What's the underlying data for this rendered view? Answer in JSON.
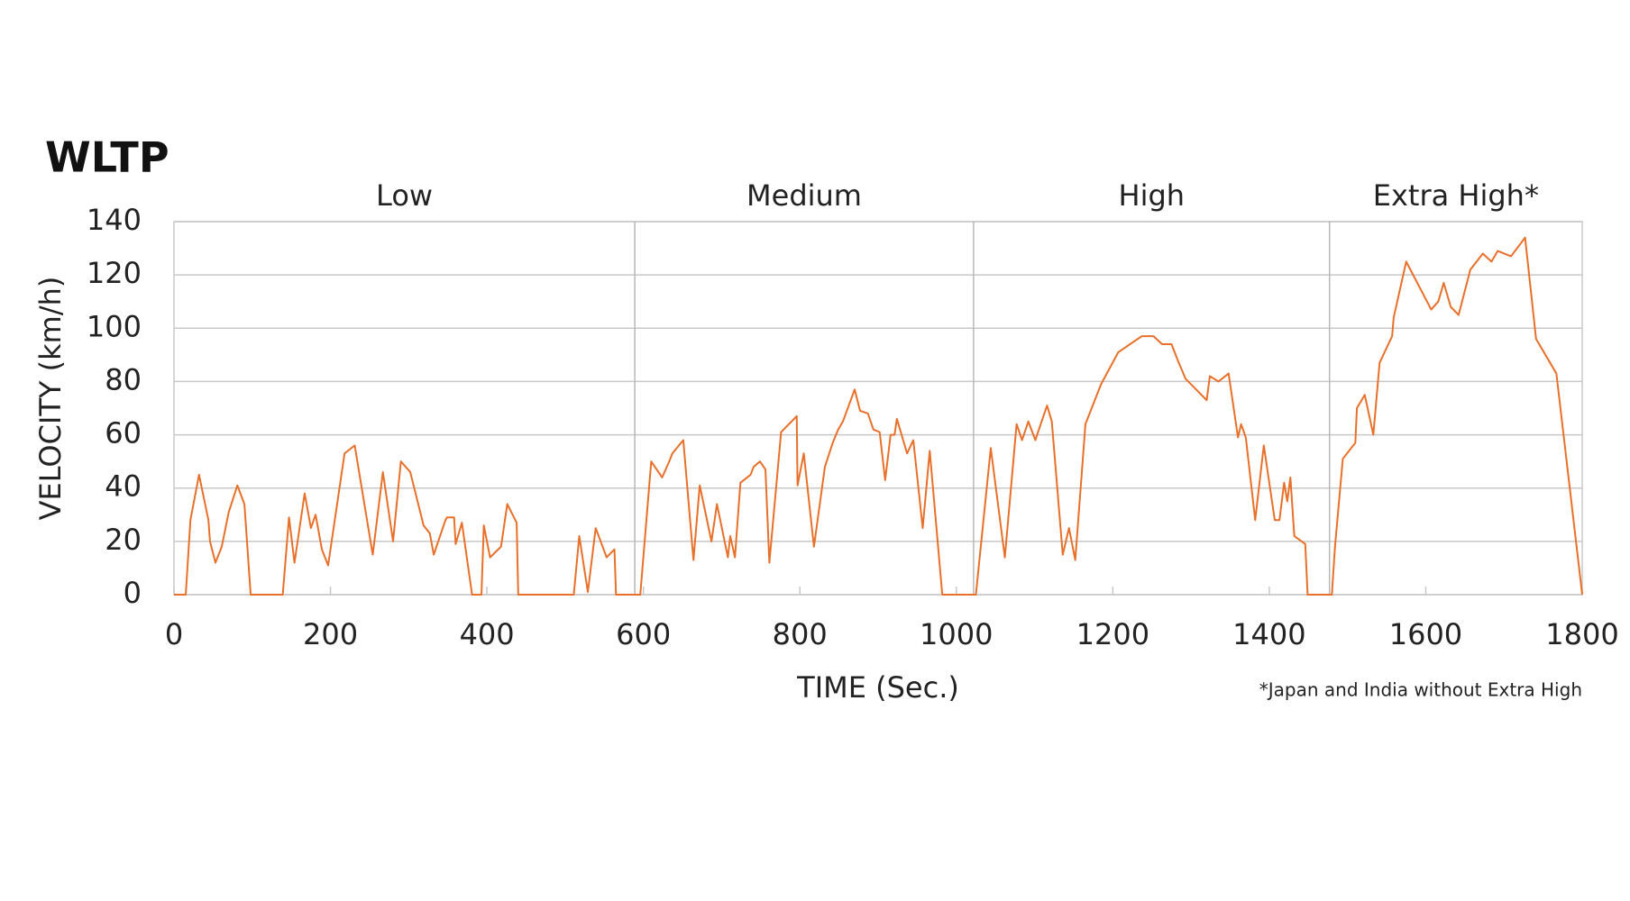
{
  "chart_data": {
    "type": "line",
    "title": "WLTP",
    "xlabel": "TIME (Sec.)",
    "ylabel": "VELOCITY (km/h)",
    "footnote": "*Japan and India without Extra High",
    "phases": [
      "Low",
      "Medium",
      "High",
      "Extra High*"
    ],
    "phase_bounds": [
      0,
      589,
      1022,
      1477,
      1800
    ],
    "color": "#e8702a",
    "x": [
      0,
      15,
      21,
      32,
      44,
      46,
      53,
      61,
      70,
      81,
      90,
      98,
      139,
      147,
      154,
      167,
      175,
      181,
      189,
      197,
      218,
      231,
      254,
      267,
      280,
      290,
      302,
      319,
      327,
      332,
      347,
      349,
      358,
      360,
      368,
      381,
      393,
      396,
      404,
      418,
      426,
      438,
      440,
      511,
      518,
      529,
      539,
      553,
      563,
      565,
      596,
      610,
      624,
      633,
      637,
      651,
      664,
      672,
      687,
      694,
      708,
      711,
      717,
      724,
      737,
      741,
      749,
      756,
      761,
      776,
      796,
      797,
      805,
      818,
      832,
      842,
      849,
      855,
      870,
      877,
      887,
      894,
      902,
      909,
      916,
      921,
      924,
      937,
      945,
      957,
      966,
      982,
      1025,
      1044,
      1062,
      1077,
      1084,
      1092,
      1101,
      1109,
      1116,
      1122,
      1136,
      1144,
      1152,
      1165,
      1185,
      1207,
      1237,
      1252,
      1263,
      1275,
      1283,
      1293,
      1320,
      1324,
      1335,
      1348,
      1360,
      1364,
      1370,
      1382,
      1393,
      1407,
      1413,
      1419,
      1423,
      1427,
      1432,
      1446,
      1449,
      1480,
      1484,
      1494,
      1510,
      1512,
      1522,
      1533,
      1541,
      1557,
      1559,
      1575,
      1607,
      1616,
      1623,
      1632,
      1642,
      1657,
      1673,
      1684,
      1692,
      1709,
      1727,
      1741,
      1767,
      1800
    ],
    "values": [
      0,
      0,
      28,
      45,
      28,
      20,
      12,
      18,
      31,
      41,
      34,
      0,
      0,
      29,
      12,
      38,
      25,
      30,
      17,
      11,
      53,
      56,
      15,
      46,
      20,
      50,
      46,
      26,
      23,
      15,
      28,
      29,
      29,
      19,
      27,
      0,
      0,
      26,
      14,
      18,
      34,
      27,
      0,
      0,
      22,
      1,
      25,
      14,
      17,
      0,
      0,
      50,
      44,
      50,
      53,
      58,
      13,
      41,
      20,
      34,
      14,
      22,
      14,
      42,
      45,
      48,
      50,
      47,
      12,
      61,
      67,
      41,
      53,
      18,
      48,
      57,
      62,
      65,
      77,
      69,
      68,
      62,
      61,
      43,
      60,
      60,
      66,
      53,
      58,
      25,
      54,
      0,
      0,
      55,
      14,
      64,
      58,
      65,
      58,
      65,
      71,
      65,
      15,
      25,
      13,
      64,
      79,
      91,
      97,
      97,
      94,
      94,
      88,
      81,
      73,
      82,
      80,
      83,
      59,
      64,
      59,
      28,
      56,
      28,
      28,
      42,
      35,
      44,
      22,
      19,
      0,
      0,
      18,
      51,
      57,
      70,
      75,
      60,
      87,
      97,
      104,
      125,
      107,
      110,
      117,
      108,
      105,
      122,
      128,
      125,
      129,
      127,
      134,
      96,
      83,
      0
    ],
    "xlim": [
      0,
      1800
    ],
    "xticks": [
      0,
      200,
      400,
      600,
      800,
      1000,
      1200,
      1400,
      1600,
      1800
    ],
    "ylim": [
      0,
      140
    ],
    "yticks": [
      0,
      20,
      40,
      60,
      80,
      100,
      120,
      140
    ],
    "grid": true
  }
}
